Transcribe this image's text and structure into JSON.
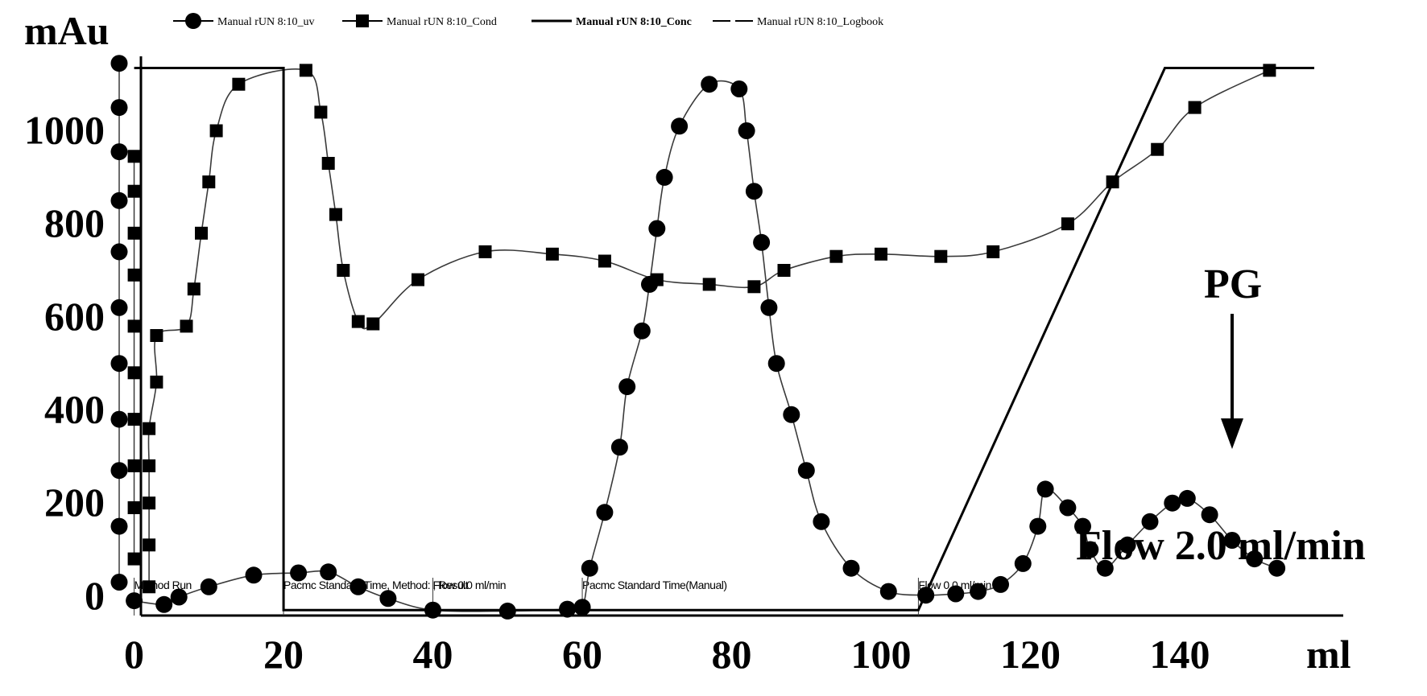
{
  "chart_data": {
    "type": "line",
    "x_unit": "ml",
    "y_unit": "mAu",
    "xlim": [
      -2,
      158
    ],
    "ylim": [
      -40,
      1160
    ],
    "x_ticks": [
      0,
      20,
      40,
      60,
      80,
      100,
      120,
      140
    ],
    "y_ticks": [
      0,
      200,
      400,
      600,
      800,
      1000
    ],
    "legend_position": "top",
    "series": [
      {
        "name": "Manual rUN 8:10_uv",
        "marker": "circle",
        "points": [
          [
            -2,
            1145
          ],
          [
            -2,
            1050
          ],
          [
            -2,
            955
          ],
          [
            -2,
            850
          ],
          [
            -2,
            740
          ],
          [
            -2,
            620
          ],
          [
            -2,
            500
          ],
          [
            -2,
            380
          ],
          [
            -2,
            270
          ],
          [
            -2,
            150
          ],
          [
            -2,
            30
          ],
          [
            0,
            -10
          ],
          [
            4,
            -18
          ],
          [
            6,
            -2
          ],
          [
            10,
            20
          ],
          [
            16,
            45
          ],
          [
            22,
            50
          ],
          [
            26,
            52
          ],
          [
            30,
            20
          ],
          [
            34,
            -5
          ],
          [
            40,
            -30
          ],
          [
            50,
            -32
          ],
          [
            58,
            -28
          ],
          [
            60,
            -24
          ],
          [
            61,
            60
          ],
          [
            63,
            180
          ],
          [
            65,
            320
          ],
          [
            66,
            450
          ],
          [
            68,
            570
          ],
          [
            69,
            670
          ],
          [
            70,
            790
          ],
          [
            71,
            900
          ],
          [
            73,
            1010
          ],
          [
            77,
            1100
          ],
          [
            81,
            1090
          ],
          [
            82,
            1000
          ],
          [
            83,
            870
          ],
          [
            84,
            760
          ],
          [
            85,
            620
          ],
          [
            86,
            500
          ],
          [
            88,
            390
          ],
          [
            90,
            270
          ],
          [
            92,
            160
          ],
          [
            96,
            60
          ],
          [
            101,
            10
          ],
          [
            106,
            2
          ],
          [
            110,
            5
          ],
          [
            113,
            10
          ],
          [
            116,
            25
          ],
          [
            119,
            70
          ],
          [
            121,
            150
          ],
          [
            122,
            230
          ],
          [
            125,
            190
          ],
          [
            127,
            150
          ],
          [
            128,
            100
          ],
          [
            130,
            60
          ],
          [
            133,
            110
          ],
          [
            136,
            160
          ],
          [
            139,
            200
          ],
          [
            141,
            210
          ],
          [
            144,
            175
          ],
          [
            147,
            120
          ],
          [
            150,
            80
          ],
          [
            153,
            60
          ]
        ]
      },
      {
        "name": "Manual rUN 8:10_Cond",
        "marker": "square",
        "points": [
          [
            0,
            945
          ],
          [
            0,
            870
          ],
          [
            0,
            780
          ],
          [
            0,
            690
          ],
          [
            0,
            580
          ],
          [
            0,
            480
          ],
          [
            0,
            380
          ],
          [
            0,
            280
          ],
          [
            0,
            190
          ],
          [
            0,
            80
          ],
          [
            2,
            20
          ],
          [
            2,
            110
          ],
          [
            2,
            200
          ],
          [
            2,
            280
          ],
          [
            2,
            360
          ],
          [
            3,
            460
          ],
          [
            3,
            560
          ],
          [
            7,
            580
          ],
          [
            8,
            660
          ],
          [
            9,
            780
          ],
          [
            10,
            890
          ],
          [
            11,
            1000
          ],
          [
            14,
            1100
          ],
          [
            23,
            1130
          ],
          [
            25,
            1040
          ],
          [
            26,
            930
          ],
          [
            27,
            820
          ],
          [
            28,
            700
          ],
          [
            30,
            590
          ],
          [
            32,
            585
          ],
          [
            38,
            680
          ],
          [
            47,
            740
          ],
          [
            56,
            735
          ],
          [
            63,
            720
          ],
          [
            70,
            680
          ],
          [
            77,
            670
          ],
          [
            83,
            665
          ],
          [
            87,
            700
          ],
          [
            94,
            730
          ],
          [
            100,
            735
          ],
          [
            108,
            730
          ],
          [
            115,
            740
          ],
          [
            125,
            800
          ],
          [
            131,
            890
          ],
          [
            137,
            960
          ],
          [
            142,
            1050
          ],
          [
            152,
            1130
          ]
        ]
      },
      {
        "name": "Manual rUN 8:10_Conc",
        "marker": "none",
        "points": [
          [
            0,
            1135
          ],
          [
            20,
            1135
          ],
          [
            20,
            -30
          ],
          [
            105,
            -30
          ],
          [
            138,
            1135
          ],
          [
            158,
            1135
          ]
        ]
      },
      {
        "name": "Manual rUN 8:10_Logbook",
        "marker": "none",
        "points": []
      }
    ]
  },
  "text": {
    "y_unit": "mAu",
    "x_unit": "ml",
    "pg_label": "PG",
    "flow_label": "Flow 2.0 ml/min",
    "logbook_entries": [
      {
        "text": "Method Run",
        "x": 0
      },
      {
        "text": "Pacmc Standard Time, Method: , Result",
        "x": 20
      },
      {
        "text": "Flow 0.0 ml/min",
        "x": 40
      },
      {
        "text": "Pacmc Standard Time(Manual)",
        "x": 60
      },
      {
        "text": "Flow 0.0 ml/min",
        "x": 105
      }
    ]
  },
  "style": {
    "ink": "#000000",
    "thin_line": "#3a3a3a",
    "background": "#ffffff"
  }
}
